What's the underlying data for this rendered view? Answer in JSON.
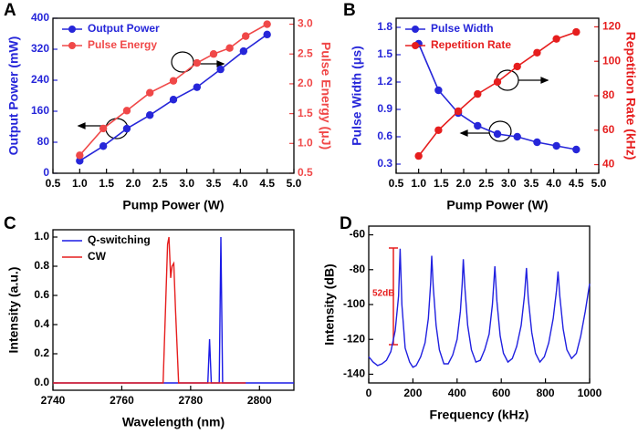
{
  "chart_data": [
    {
      "type": "line",
      "panel": "A",
      "markers": true,
      "legend": "upper left",
      "xlabel": "Pump Power (W)",
      "ylabel": "Output Power (mW)",
      "y2label": "Pulse Energy (μJ)",
      "xlim": [
        0.5,
        5.0
      ],
      "xticks": [
        0.5,
        {
          "value": 1,
          "label": "1.0"
        },
        1.5,
        {
          "value": 2,
          "label": "2.0"
        },
        2.5,
        {
          "value": 3,
          "label": "3.0"
        },
        3.5,
        {
          "value": 4,
          "label": "4.0"
        },
        4.5,
        {
          "value": 5,
          "label": "5.0"
        }
      ],
      "ylim": [
        0,
        400
      ],
      "yticks": [
        0,
        80,
        160,
        240,
        320,
        400
      ],
      "y2lim": [
        0.5,
        3.1
      ],
      "y2ticks": [
        0.5,
        {
          "value": 1,
          "label": "1.0"
        },
        1.5,
        {
          "value": 2,
          "label": "2.0"
        },
        2.5,
        {
          "value": 3,
          "label": "3.0"
        }
      ],
      "series": [
        {
          "name": "Output Power",
          "color": "#2626d9",
          "x": [
            1.0,
            1.44,
            1.88,
            2.31,
            2.75,
            3.19,
            3.63,
            4.06,
            4.5
          ],
          "values": [
            32,
            70,
            115,
            150,
            190,
            222,
            268,
            315,
            358
          ]
        },
        {
          "name": "Pulse Energy",
          "color": "#f04848",
          "axis": "y2",
          "x": [
            1.0,
            1.44,
            1.88,
            2.31,
            2.75,
            3.19,
            3.5,
            3.8,
            4.1,
            4.5
          ],
          "values": [
            0.8,
            1.25,
            1.55,
            1.85,
            2.05,
            2.35,
            2.5,
            2.6,
            2.8,
            3.0
          ]
        }
      ]
    },
    {
      "type": "line",
      "panel": "B",
      "markers": true,
      "legend": "upper left",
      "xlabel": "Pump Power (W)",
      "ylabel": "Pulse Width (μs)",
      "y2label": "Repetition Rate (kHz)",
      "xlim": [
        0.5,
        5.0
      ],
      "xticks": [
        0.5,
        {
          "value": 1,
          "label": "1.0"
        },
        1.5,
        {
          "value": 2,
          "label": "2.0"
        },
        2.5,
        {
          "value": 3,
          "label": "3.0"
        },
        3.5,
        {
          "value": 4,
          "label": "4.0"
        },
        4.5,
        {
          "value": 5,
          "label": "5.0"
        }
      ],
      "ylim": [
        0.2,
        1.9
      ],
      "yticks": [
        0.3,
        0.6,
        0.9,
        1.2,
        1.5,
        1.8
      ],
      "y2lim": [
        35,
        125
      ],
      "y2ticks": [
        40,
        60,
        80,
        100,
        120
      ],
      "series": [
        {
          "name": "Pulse Width",
          "color": "#2626d9",
          "x": [
            1.0,
            1.44,
            1.88,
            2.31,
            2.75,
            3.19,
            3.63,
            4.06,
            4.5
          ],
          "values": [
            1.62,
            1.11,
            0.86,
            0.72,
            0.63,
            0.6,
            0.54,
            0.5,
            0.46
          ]
        },
        {
          "name": "Repetition Rate",
          "color": "#e61e1e",
          "axis": "y2",
          "x": [
            1.0,
            1.44,
            1.88,
            2.31,
            2.75,
            3.19,
            3.63,
            4.06,
            4.5
          ],
          "values": [
            45,
            60,
            71,
            81,
            88,
            97,
            105,
            113,
            117
          ]
        }
      ]
    },
    {
      "type": "line",
      "panel": "C",
      "markers": false,
      "legend": "upper left",
      "xlabel": "Wavelength (nm)",
      "ylabel": "Intensity (a.u.)",
      "xlim": [
        2740,
        2810
      ],
      "xticks": [
        2740,
        2760,
        2780,
        2800
      ],
      "ylim": [
        -0.05,
        1.05
      ],
      "yticks": [
        {
          "value": 0,
          "label": "0.0"
        },
        0.2,
        0.4,
        0.6,
        0.8,
        {
          "value": 1,
          "label": "1.0"
        }
      ],
      "series": [
        {
          "name": "Q-switching",
          "color": "#1a1ae6",
          "x": [
            2740,
            2785,
            2785.5,
            2786,
            2788.3,
            2788.8,
            2789.3,
            2810
          ],
          "values": [
            0,
            0,
            0.3,
            0,
            0,
            1.0,
            0,
            0
          ]
        },
        {
          "name": "CW",
          "color": "#e61e1e",
          "x": [
            2740,
            2772,
            2772.7,
            2773.3,
            2773.7,
            2774.2,
            2774.6,
            2775.1,
            2775.6,
            2776.5,
            2796
          ],
          "values": [
            0,
            0,
            0.5,
            0.95,
            1.0,
            0.72,
            0.8,
            0.82,
            0.5,
            0,
            0
          ]
        }
      ]
    },
    {
      "type": "line",
      "panel": "D",
      "markers": false,
      "xlabel": "Frequency (kHz)",
      "ylabel": "Intensity (dB)",
      "annotation": "52dB",
      "xlim": [
        0,
        1000
      ],
      "xticks": [
        0,
        200,
        400,
        600,
        800,
        1000
      ],
      "ylim": [
        -145,
        -55
      ],
      "yticks": [
        -140,
        -120,
        -100,
        -80,
        -60
      ],
      "series": [
        {
          "color": "#2020e0",
          "x": [
            0,
            20,
            40,
            60,
            80,
            100,
            120,
            135,
            142,
            150,
            165,
            185,
            200,
            215,
            235,
            255,
            270,
            280,
            285,
            292,
            305,
            320,
            340,
            360,
            380,
            400,
            415,
            423,
            428,
            435,
            448,
            465,
            485,
            505,
            525,
            545,
            560,
            571,
            580,
            595,
            610,
            630,
            650,
            670,
            690,
            705,
            714,
            722,
            738,
            755,
            775,
            795,
            815,
            835,
            850,
            857,
            865,
            880,
            897,
            918,
            940,
            960,
            980,
            1000
          ],
          "values": [
            -130,
            -133,
            -135,
            -134,
            -132,
            -127,
            -115,
            -95,
            -68,
            -100,
            -125,
            -133,
            -136,
            -135,
            -130,
            -122,
            -108,
            -88,
            -72,
            -90,
            -112,
            -126,
            -134,
            -134,
            -129,
            -120,
            -104,
            -88,
            -74,
            -90,
            -112,
            -126,
            -133,
            -132,
            -126,
            -117,
            -100,
            -78,
            -98,
            -118,
            -128,
            -133,
            -131,
            -124,
            -112,
            -95,
            -79,
            -96,
            -116,
            -128,
            -133,
            -130,
            -122,
            -108,
            -92,
            -81,
            -95,
            -114,
            -126,
            -131,
            -128,
            -118,
            -104,
            -88
          ]
        }
      ]
    }
  ]
}
